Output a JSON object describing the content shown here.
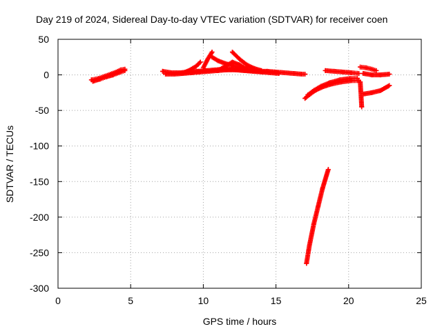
{
  "chart_data": {
    "type": "scatter",
    "title": "Day 219 of 2024, Sidereal Day-to-day VTEC variation (SDTVAR) for receiver coen",
    "xlabel": "GPS time / hours",
    "ylabel": "SDTVAR / TECUs",
    "xlim": [
      0,
      25
    ],
    "ylim": [
      -300,
      50
    ],
    "xticks": [
      "0",
      "5",
      "10",
      "15",
      "20",
      "25"
    ],
    "yticks": [
      "50",
      "0",
      "-50",
      "-100",
      "-150",
      "-200",
      "-250",
      "-300"
    ],
    "grid": true,
    "marker": "plus",
    "color": "#ff0000",
    "series": [
      {
        "x": [
          2.3,
          2.8,
          3.2,
          3.6,
          4.0,
          4.3,
          4.6
        ],
        "y": [
          -7,
          -5,
          -2,
          1,
          4,
          7,
          8
        ]
      },
      {
        "x": [
          2.4,
          2.9,
          3.3,
          3.8,
          4.2,
          4.6
        ],
        "y": [
          -9,
          -6,
          -3,
          0,
          3,
          6
        ]
      },
      {
        "x": [
          7.2,
          7.8,
          8.4,
          9.0,
          9.6,
          10.2,
          10.8,
          11.4,
          12.0,
          12.6,
          13.2,
          13.8,
          14.4,
          15.0,
          15.6,
          16.2,
          16.8,
          17.0
        ],
        "y": [
          5,
          3,
          3,
          4,
          5,
          6,
          7,
          8,
          8,
          7,
          6,
          5,
          5,
          4,
          3,
          2,
          1,
          1
        ]
      },
      {
        "x": [
          7.4,
          8.0,
          8.6,
          9.2,
          9.8,
          10.4,
          11.0,
          11.6,
          12.2,
          12.8,
          13.4,
          14.0,
          14.6,
          15.2
        ],
        "y": [
          1,
          1,
          2,
          3,
          4,
          5,
          6,
          7,
          7,
          6,
          5,
          4,
          3,
          2
        ]
      },
      {
        "x": [
          8.5,
          9.0,
          9.5,
          9.8
        ],
        "y": [
          2,
          6,
          12,
          18
        ]
      },
      {
        "x": [
          10.0,
          10.3,
          10.6
        ],
        "y": [
          10,
          22,
          32
        ]
      },
      {
        "x": [
          10.6,
          11.0,
          11.5,
          12.0,
          12.5,
          13.0,
          13.5,
          14.0
        ],
        "y": [
          25,
          20,
          16,
          13,
          10,
          8,
          6,
          5
        ]
      },
      {
        "x": [
          12.0,
          12.5,
          13.0,
          13.5,
          14.0
        ],
        "y": [
          32,
          22,
          14,
          9,
          6
        ]
      },
      {
        "x": [
          11.0,
          11.5,
          12.0,
          12.5,
          13.0
        ],
        "y": [
          6,
          12,
          18,
          14,
          8
        ]
      },
      {
        "x": [
          17.0,
          17.3,
          17.7,
          18.2,
          18.8,
          19.5,
          20.2,
          20.7
        ],
        "y": [
          -33,
          -28,
          -22,
          -17,
          -13,
          -10,
          -8,
          -8
        ]
      },
      {
        "x": [
          17.2,
          17.6,
          18.1,
          18.7,
          19.4,
          20.1,
          20.6
        ],
        "y": [
          -28,
          -22,
          -16,
          -11,
          -7,
          -5,
          -5
        ]
      },
      {
        "x": [
          17.1,
          17.3,
          17.6,
          17.9,
          18.2,
          18.6
        ],
        "y": [
          -265,
          -240,
          -210,
          -185,
          -160,
          -133
        ]
      },
      {
        "x": [
          18.4,
          19.0,
          19.6,
          20.2,
          20.7
        ],
        "y": [
          6,
          5,
          4,
          3,
          2
        ]
      },
      {
        "x": [
          20.8,
          21.2,
          21.6,
          21.9
        ],
        "y": [
          11,
          10,
          8,
          6
        ]
      },
      {
        "x": [
          21.0,
          21.6,
          22.2,
          22.8
        ],
        "y": [
          2,
          0,
          0,
          1
        ]
      },
      {
        "x": [
          20.8,
          20.9
        ],
        "y": [
          -10,
          -45
        ]
      },
      {
        "x": [
          21.0,
          21.6,
          22.2,
          22.8
        ],
        "y": [
          -27,
          -25,
          -22,
          -15
        ]
      }
    ]
  }
}
